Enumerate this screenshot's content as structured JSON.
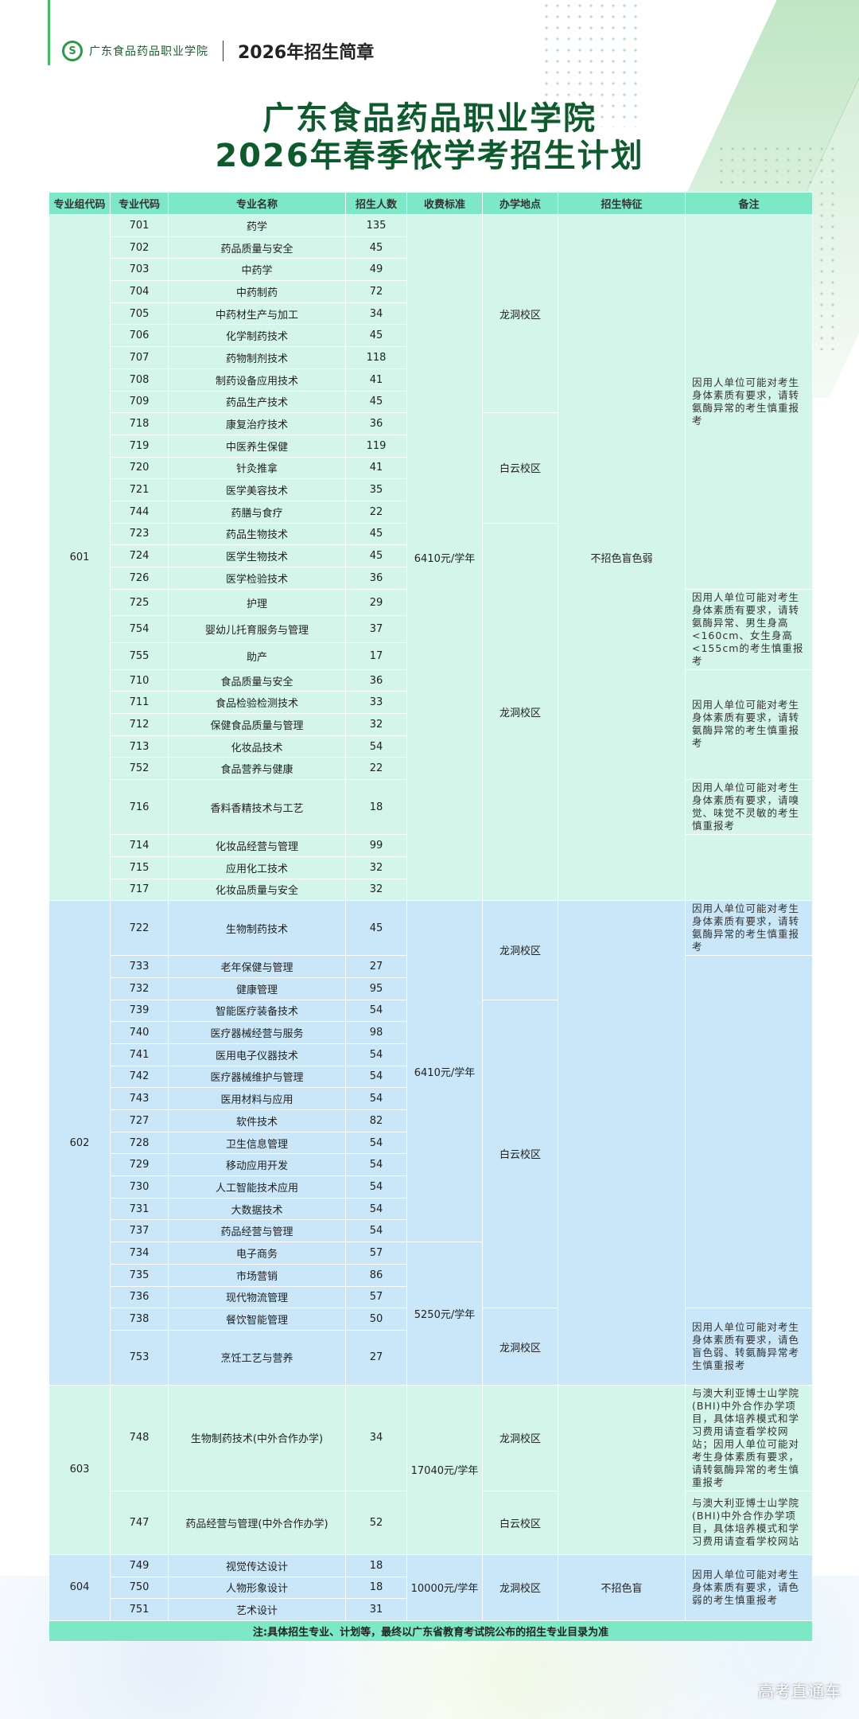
{
  "header": {
    "logo_text": "广东食品药品职业学院",
    "brochure": "2026年招生简章"
  },
  "title": {
    "line1": "广东食品药品职业学院",
    "line2": "2026年春季依学考招生计划"
  },
  "colors": {
    "header": "#7de8c5",
    "group_green": "#d3f5ea",
    "group_blue": "#c9e7f8",
    "title": "#0d5a2c"
  },
  "columns": [
    "专业组代码",
    "专业代码",
    "专业名称",
    "招生人数",
    "收费标准",
    "办学地点",
    "招生特征",
    "备注"
  ],
  "groups": [
    {
      "code": "601",
      "feature": "不招色盲色弱",
      "rows": [
        {
          "code": "701",
          "name": "药学",
          "count": "135",
          "fee": "6410元/学年",
          "campus": "龙洞校区",
          "remark": "因用人单位可能对考生身体素质有要求，请转氨酶异常的考生慎重报考"
        },
        {
          "code": "702",
          "name": "药品质量与安全",
          "count": "45",
          "fee": "6410元/学年",
          "campus": "龙洞校区",
          "remark": "因用人单位可能对考生身体素质有要求，请转氨酶异常的考生慎重报考"
        },
        {
          "code": "703",
          "name": "中药学",
          "count": "49",
          "fee": "6410元/学年",
          "campus": "龙洞校区",
          "remark": "因用人单位可能对考生身体素质有要求，请转氨酶异常的考生慎重报考"
        },
        {
          "code": "704",
          "name": "中药制药",
          "count": "72",
          "fee": "6410元/学年",
          "campus": "龙洞校区",
          "remark": "因用人单位可能对考生身体素质有要求，请转氨酶异常的考生慎重报考"
        },
        {
          "code": "705",
          "name": "中药材生产与加工",
          "count": "34",
          "fee": "6410元/学年",
          "campus": "龙洞校区",
          "remark": "因用人单位可能对考生身体素质有要求，请转氨酶异常的考生慎重报考"
        },
        {
          "code": "706",
          "name": "化学制药技术",
          "count": "45",
          "fee": "6410元/学年",
          "campus": "龙洞校区",
          "remark": "因用人单位可能对考生身体素质有要求，请转氨酶异常的考生慎重报考"
        },
        {
          "code": "707",
          "name": "药物制剂技术",
          "count": "118",
          "fee": "6410元/学年",
          "campus": "龙洞校区",
          "remark": "因用人单位可能对考生身体素质有要求，请转氨酶异常的考生慎重报考"
        },
        {
          "code": "708",
          "name": "制药设备应用技术",
          "count": "41",
          "fee": "6410元/学年",
          "campus": "龙洞校区",
          "remark": "因用人单位可能对考生身体素质有要求，请转氨酶异常的考生慎重报考"
        },
        {
          "code": "709",
          "name": "药品生产技术",
          "count": "45",
          "fee": "6410元/学年",
          "campus": "龙洞校区",
          "remark": "因用人单位可能对考生身体素质有要求，请转氨酶异常的考生慎重报考"
        },
        {
          "code": "718",
          "name": "康复治疗技术",
          "count": "36",
          "fee": "6410元/学年",
          "campus": "白云校区",
          "remark": "因用人单位可能对考生身体素质有要求，请转氨酶异常的考生慎重报考"
        },
        {
          "code": "719",
          "name": "中医养生保健",
          "count": "119",
          "fee": "6410元/学年",
          "campus": "白云校区",
          "remark": "因用人单位可能对考生身体素质有要求，请转氨酶异常的考生慎重报考"
        },
        {
          "code": "720",
          "name": "针灸推拿",
          "count": "41",
          "fee": "6410元/学年",
          "campus": "白云校区",
          "remark": "因用人单位可能对考生身体素质有要求，请转氨酶异常的考生慎重报考"
        },
        {
          "code": "721",
          "name": "医学美容技术",
          "count": "35",
          "fee": "6410元/学年",
          "campus": "白云校区",
          "remark": "因用人单位可能对考生身体素质有要求，请转氨酶异常的考生慎重报考"
        },
        {
          "code": "744",
          "name": "药膳与食疗",
          "count": "22",
          "fee": "6410元/学年",
          "campus": "白云校区",
          "remark": "因用人单位可能对考生身体素质有要求，请转氨酶异常的考生慎重报考"
        },
        {
          "code": "723",
          "name": "药品生物技术",
          "count": "45",
          "fee": "6410元/学年",
          "campus": "龙洞校区",
          "remark": "因用人单位可能对考生身体素质有要求，请转氨酶异常的考生慎重报考"
        },
        {
          "code": "724",
          "name": "医学生物技术",
          "count": "45",
          "fee": "6410元/学年",
          "campus": "龙洞校区",
          "remark": "因用人单位可能对考生身体素质有要求，请转氨酶异常的考生慎重报考"
        },
        {
          "code": "726",
          "name": "医学检验技术",
          "count": "36",
          "fee": "6410元/学年",
          "campus": "龙洞校区",
          "remark": "因用人单位可能对考生身体素质有要求，请转氨酶异常的考生慎重报考"
        },
        {
          "code": "725",
          "name": "护理",
          "count": "29",
          "fee": "6410元/学年",
          "campus": "龙洞校区",
          "remark": "因用人单位可能对考生身体素质有要求，请转氨酶异常、男生身高<160cm、女生身高<155cm的考生慎重报考"
        },
        {
          "code": "754",
          "name": "婴幼儿托育服务与管理",
          "count": "37",
          "fee": "6410元/学年",
          "campus": "龙洞校区",
          "remark": "因用人单位可能对考生身体素质有要求，请转氨酶异常、男生身高<160cm、女生身高<155cm的考生慎重报考"
        },
        {
          "code": "755",
          "name": "助产",
          "count": "17",
          "fee": "6410元/学年",
          "campus": "龙洞校区",
          "remark": "因用人单位可能对考生身体素质有要求，请转氨酶异常、男生身高<160cm、女生身高<155cm的考生慎重报考"
        },
        {
          "code": "710",
          "name": "食品质量与安全",
          "count": "36",
          "fee": "6410元/学年",
          "campus": "龙洞校区",
          "remark": "因用人单位可能对考生身体素质有要求，请转氨酶异常的考生慎重报考 "
        },
        {
          "code": "711",
          "name": "食品检验检测技术",
          "count": "33",
          "fee": "6410元/学年",
          "campus": "龙洞校区",
          "remark": "因用人单位可能对考生身体素质有要求，请转氨酶异常的考生慎重报考 "
        },
        {
          "code": "712",
          "name": "保健食品质量与管理",
          "count": "32",
          "fee": "6410元/学年",
          "campus": "龙洞校区",
          "remark": "因用人单位可能对考生身体素质有要求，请转氨酶异常的考生慎重报考 "
        },
        {
          "code": "713",
          "name": "化妆品技术",
          "count": "54",
          "fee": "6410元/学年",
          "campus": "龙洞校区",
          "remark": "因用人单位可能对考生身体素质有要求，请转氨酶异常的考生慎重报考 "
        },
        {
          "code": "752",
          "name": "食品营养与健康",
          "count": "22",
          "fee": "6410元/学年",
          "campus": "龙洞校区",
          "remark": "因用人单位可能对考生身体素质有要求，请转氨酶异常的考生慎重报考 "
        },
        {
          "code": "716",
          "name": "香料香精技术与工艺",
          "count": "18",
          "fee": "6410元/学年",
          "campus": "龙洞校区",
          "remark": "因用人单位可能对考生身体素质有要求，请嗅觉、味觉不灵敏的考生慎重报考"
        },
        {
          "code": "714",
          "name": "化妆品经营与管理",
          "count": "99",
          "fee": "6410元/学年",
          "campus": "龙洞校区",
          "remark": ""
        },
        {
          "code": "715",
          "name": "应用化工技术",
          "count": "32",
          "fee": "6410元/学年",
          "campus": "龙洞校区",
          "remark": ""
        },
        {
          "code": "717",
          "name": "化妆品质量与安全",
          "count": "32",
          "fee": "6410元/学年",
          "campus": "龙洞校区",
          "remark": ""
        }
      ]
    },
    {
      "code": "602",
      "feature": "",
      "rows": [
        {
          "code": "722",
          "name": "生物制药技术",
          "count": "45",
          "fee": "6410元/学年",
          "campus": "龙洞校区",
          "remark": "因用人单位可能对考生身体素质有要求，请转氨酶异常的考生慎重报考"
        },
        {
          "code": "733",
          "name": "老年保健与管理",
          "count": "27",
          "fee": "6410元/学年",
          "campus": "龙洞校区",
          "remark": ""
        },
        {
          "code": "732",
          "name": "健康管理",
          "count": "95",
          "fee": "6410元/学年",
          "campus": "龙洞校区",
          "remark": ""
        },
        {
          "code": "739",
          "name": "智能医疗装备技术",
          "count": "54",
          "fee": "6410元/学年",
          "campus": "白云校区",
          "remark": ""
        },
        {
          "code": "740",
          "name": "医疗器械经营与服务",
          "count": "98",
          "fee": "6410元/学年",
          "campus": "白云校区",
          "remark": ""
        },
        {
          "code": "741",
          "name": "医用电子仪器技术",
          "count": "54",
          "fee": "6410元/学年",
          "campus": "白云校区",
          "remark": ""
        },
        {
          "code": "742",
          "name": "医疗器械维护与管理",
          "count": "54",
          "fee": "6410元/学年",
          "campus": "白云校区",
          "remark": ""
        },
        {
          "code": "743",
          "name": "医用材料与应用",
          "count": "54",
          "fee": "6410元/学年",
          "campus": "白云校区",
          "remark": ""
        },
        {
          "code": "727",
          "name": "软件技术",
          "count": "82",
          "fee": "6410元/学年",
          "campus": "白云校区",
          "remark": ""
        },
        {
          "code": "728",
          "name": "卫生信息管理",
          "count": "54",
          "fee": "6410元/学年",
          "campus": "白云校区",
          "remark": ""
        },
        {
          "code": "729",
          "name": "移动应用开发",
          "count": "54",
          "fee": "6410元/学年",
          "campus": "白云校区",
          "remark": ""
        },
        {
          "code": "730",
          "name": "人工智能技术应用",
          "count": "54",
          "fee": "6410元/学年",
          "campus": "白云校区",
          "remark": ""
        },
        {
          "code": "731",
          "name": "大数据技术",
          "count": "54",
          "fee": "6410元/学年",
          "campus": "白云校区",
          "remark": ""
        },
        {
          "code": "737",
          "name": "药品经营与管理",
          "count": "54",
          "fee": "6410元/学年",
          "campus": "白云校区",
          "remark": ""
        },
        {
          "code": "734",
          "name": "电子商务",
          "count": "57",
          "fee": "5250元/学年",
          "campus": "白云校区",
          "remark": ""
        },
        {
          "code": "735",
          "name": "市场营销",
          "count": "86",
          "fee": "5250元/学年",
          "campus": "白云校区",
          "remark": ""
        },
        {
          "code": "736",
          "name": "现代物流管理",
          "count": "57",
          "fee": "5250元/学年",
          "campus": "白云校区",
          "remark": ""
        },
        {
          "code": "738",
          "name": "餐饮智能管理",
          "count": "50",
          "fee": "5250元/学年",
          "campus": "龙洞校区",
          "remark": "因用人单位可能对考生身体素质有要求，请色盲色弱、转氨酶异常考生慎重报考"
        },
        {
          "code": "753",
          "name": "烹饪工艺与营养",
          "count": "27",
          "fee": "5250元/学年",
          "campus": "龙洞校区",
          "remark": "因用人单位可能对考生身体素质有要求，请色盲色弱、转氨酶异常考生慎重报考"
        }
      ]
    },
    {
      "code": "603",
      "feature": "",
      "rows": [
        {
          "code": "748",
          "name": "生物制药技术(中外合作办学)",
          "count": "34",
          "fee": "17040元/学年",
          "campus": "龙洞校区",
          "remark": "与澳大利亚博士山学院(BHI)中外合作办学项目，具体培养模式和学习费用请查看学校网站；因用人单位可能对考生身体素质有要求，请转氨酶异常的考生慎重报考"
        },
        {
          "code": "747",
          "name": "药品经营与管理(中外合作办学)",
          "count": "52",
          "fee": "17040元/学年",
          "campus": "白云校区",
          "remark": "与澳大利亚博士山学院(BHI)中外合作办学项目，具体培养模式和学习费用请查看学校网站"
        }
      ]
    },
    {
      "code": "604",
      "feature": "不招色盲",
      "rows": [
        {
          "code": "749",
          "name": "视觉传达设计",
          "count": "18",
          "fee": "10000元/学年",
          "campus": "龙洞校区",
          "remark": "因用人单位可能对考生身体素质有要求，请色弱的考生慎重报考"
        },
        {
          "code": "750",
          "name": "人物形象设计",
          "count": "18",
          "fee": "10000元/学年",
          "campus": "龙洞校区",
          "remark": "因用人单位可能对考生身体素质有要求，请色弱的考生慎重报考"
        },
        {
          "code": "751",
          "name": "艺术设计",
          "count": "31",
          "fee": "10000元/学年",
          "campus": "龙洞校区",
          "remark": "因用人单位可能对考生身体素质有要求，请色弱的考生慎重报考"
        }
      ]
    }
  ],
  "footnote": "注:具体招生专业、计划等，最终以广东省教育考试院公布的招生专业目录为准",
  "watermark": "高考直通车"
}
